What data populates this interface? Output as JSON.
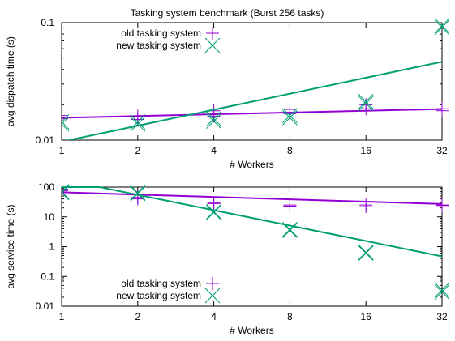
{
  "chart_data": [
    {
      "type": "scatter",
      "title": "Tasking system benchmark (Burst 256 tasks)",
      "xlabel": "# Workers",
      "ylabel": "avg dispatch time (s)",
      "xscale": "log2",
      "yscale": "log10",
      "xlim": [
        1,
        32
      ],
      "ylim": [
        0.01,
        0.1
      ],
      "xticks": [
        1,
        2,
        4,
        8,
        16,
        32
      ],
      "xtick_labels": [
        "1",
        "2",
        "4",
        "8",
        "16",
        "32"
      ],
      "yticks": [
        0.01,
        0.1
      ],
      "ytick_labels": [
        "0.01",
        "0.1"
      ],
      "legend_position": "top-left",
      "series": [
        {
          "name": "old tasking system",
          "marker": "plus",
          "color": "#9400d3",
          "points": [
            {
              "x": 1,
              "y": 0.0162
            },
            {
              "x": 1,
              "y": 0.0152
            },
            {
              "x": 2,
              "y": 0.016
            },
            {
              "x": 2,
              "y": 0.015
            },
            {
              "x": 4,
              "y": 0.0178
            },
            {
              "x": 4,
              "y": 0.016
            },
            {
              "x": 8,
              "y": 0.0183
            },
            {
              "x": 8,
              "y": 0.0168
            },
            {
              "x": 16,
              "y": 0.0185
            },
            {
              "x": 16,
              "y": 0.02
            },
            {
              "x": 32,
              "y": 0.0178
            },
            {
              "x": 32,
              "y": 0.0185
            }
          ],
          "fit": {
            "x": [
              1,
              32
            ],
            "y": [
              0.0155,
              0.0184
            ]
          }
        },
        {
          "name": "new tasking system",
          "marker": "x",
          "color": "#009e73",
          "points": [
            {
              "x": 1,
              "y": 0.0143
            },
            {
              "x": 1,
              "y": 0.0137
            },
            {
              "x": 2,
              "y": 0.0143
            },
            {
              "x": 2,
              "y": 0.0137
            },
            {
              "x": 4,
              "y": 0.0152
            },
            {
              "x": 4,
              "y": 0.0145
            },
            {
              "x": 8,
              "y": 0.0162
            },
            {
              "x": 8,
              "y": 0.0155
            },
            {
              "x": 16,
              "y": 0.0213
            },
            {
              "x": 16,
              "y": 0.0205
            },
            {
              "x": 32,
              "y": 0.094
            },
            {
              "x": 32,
              "y": 0.091
            }
          ],
          "fit": {
            "x": [
              1,
              32
            ],
            "y": [
              0.0097,
              0.0465
            ]
          }
        }
      ]
    },
    {
      "type": "scatter",
      "title": "",
      "xlabel": "# Workers",
      "ylabel": "avg service time (s)",
      "xscale": "log2",
      "yscale": "log10",
      "xlim": [
        1,
        32
      ],
      "ylim": [
        0.01,
        100
      ],
      "xticks": [
        1,
        2,
        4,
        8,
        16,
        32
      ],
      "xtick_labels": [
        "1",
        "2",
        "4",
        "8",
        "16",
        "32"
      ],
      "yticks": [
        0.01,
        0.1,
        1,
        10,
        100
      ],
      "ytick_labels": [
        "0.01",
        "0.1",
        "1",
        "10",
        "100"
      ],
      "legend_position": "bottom-left",
      "series": [
        {
          "name": "old tasking system",
          "marker": "plus",
          "color": "#9400d3",
          "points": [
            {
              "x": 1,
              "y": 75
            },
            {
              "x": 1,
              "y": 85
            },
            {
              "x": 2,
              "y": 45
            },
            {
              "x": 2,
              "y": 40
            },
            {
              "x": 4,
              "y": 30
            },
            {
              "x": 4,
              "y": 28
            },
            {
              "x": 8,
              "y": 25
            },
            {
              "x": 8,
              "y": 23
            },
            {
              "x": 16,
              "y": 25
            },
            {
              "x": 16,
              "y": 22
            },
            {
              "x": 32,
              "y": 25
            },
            {
              "x": 32,
              "y": 24
            }
          ],
          "fit": {
            "x": [
              1,
              32
            ],
            "y": [
              67,
              27
            ]
          }
        },
        {
          "name": "new tasking system",
          "marker": "x",
          "color": "#009e73",
          "points": [
            {
              "x": 1,
              "y": 70
            },
            {
              "x": 1,
              "y": 65
            },
            {
              "x": 2,
              "y": 65
            },
            {
              "x": 2,
              "y": 60
            },
            {
              "x": 4,
              "y": 15
            },
            {
              "x": 4,
              "y": 14
            },
            {
              "x": 8,
              "y": 3.8
            },
            {
              "x": 8,
              "y": 3.5
            },
            {
              "x": 16,
              "y": 0.65
            },
            {
              "x": 16,
              "y": 0.6
            },
            {
              "x": 32,
              "y": 0.035
            },
            {
              "x": 32,
              "y": 0.03
            }
          ],
          "fit": {
            "x": [
              1,
              1.414,
              32
            ],
            "y": [
              100,
              100,
              0.47
            ]
          }
        }
      ]
    }
  ]
}
